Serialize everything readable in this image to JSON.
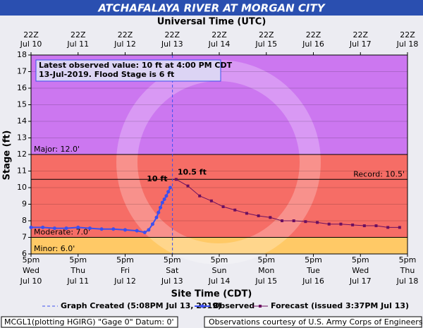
{
  "chart_data": {
    "type": "hydrograph",
    "title": "ATCHAFALAYA RIVER AT MORGAN CITY",
    "top_axis_label": "Universal Time (UTC)",
    "x_label": "Site Time (CDT)",
    "y_label": "Stage (ft)",
    "ylim": [
      6,
      18
    ],
    "yticks": [
      6,
      7,
      8,
      9,
      10,
      11,
      12,
      13,
      14,
      15,
      16,
      17,
      18
    ],
    "grid": true,
    "xlim": [
      "2019-07-10T17:00",
      "2019-07-18T17:00"
    ],
    "xticks": [
      {
        "value": "2019-07-10T17:00",
        "label": [
          "5pm",
          "Wed",
          "Jul 10"
        ]
      },
      {
        "value": "2019-07-11T17:00",
        "label": [
          "5pm",
          "Thu",
          "Jul 11"
        ]
      },
      {
        "value": "2019-07-12T17:00",
        "label": [
          "5pm",
          "Fri",
          "Jul 12"
        ]
      },
      {
        "value": "2019-07-13T17:00",
        "label": [
          "5pm",
          "Sat",
          "Jul 13"
        ]
      },
      {
        "value": "2019-07-14T17:00",
        "label": [
          "5pm",
          "Sun",
          "Jul 14"
        ]
      },
      {
        "value": "2019-07-15T17:00",
        "label": [
          "5pm",
          "Mon",
          "Jul 15"
        ]
      },
      {
        "value": "2019-07-16T17:00",
        "label": [
          "5pm",
          "Tue",
          "Jul 16"
        ]
      },
      {
        "value": "2019-07-17T17:00",
        "label": [
          "5pm",
          "Wed",
          "Jul 17"
        ]
      },
      {
        "value": "2019-07-18T17:00",
        "label": [
          "5pm",
          "Thu",
          "Jul 18"
        ]
      }
    ],
    "x2ticks": [
      {
        "value": "2019-07-10T17:00",
        "label": [
          "22Z",
          "Jul 10"
        ]
      },
      {
        "value": "2019-07-11T17:00",
        "label": [
          "22Z",
          "Jul 11"
        ]
      },
      {
        "value": "2019-07-12T17:00",
        "label": [
          "22Z",
          "Jul 12"
        ]
      },
      {
        "value": "2019-07-13T17:00",
        "label": [
          "22Z",
          "Jul 13"
        ]
      },
      {
        "value": "2019-07-14T17:00",
        "label": [
          "22Z",
          "Jul 14"
        ]
      },
      {
        "value": "2019-07-15T17:00",
        "label": [
          "22Z",
          "Jul 15"
        ]
      },
      {
        "value": "2019-07-16T17:00",
        "label": [
          "22Z",
          "Jul 16"
        ]
      },
      {
        "value": "2019-07-17T17:00",
        "label": [
          "22Z",
          "Jul 17"
        ]
      },
      {
        "value": "2019-07-18T17:00",
        "label": [
          "22Z",
          "Jul 18"
        ]
      }
    ],
    "bands": [
      {
        "from": 6,
        "to": 7,
        "color": "#ffc966"
      },
      {
        "from": 7,
        "to": 12,
        "color": "#f66d66"
      },
      {
        "from": 12,
        "to": 18,
        "color": "#cc77f0"
      }
    ],
    "thresholds": [
      {
        "value": 12,
        "label": "Major: 12.0'",
        "side": "left"
      },
      {
        "value": 10.5,
        "label": "Record: 10.5'",
        "side": "right"
      },
      {
        "value": 7,
        "label": "Moderate: 7.0'",
        "side": "left"
      },
      {
        "value": 6,
        "label": "Minor: 6.0'",
        "side": "left"
      }
    ],
    "created": {
      "x": "2019-07-13T17:08",
      "label": "Graph Created (5:08PM Jul 13, 2019)"
    },
    "info_box": [
      "Latest observed value: 10 ft at 4:00 PM CDT",
      "13-Jul-2019.  Flood Stage is 6 ft"
    ],
    "series": [
      {
        "name": "Observed",
        "color": "#3b4ff0",
        "label": "10 ft",
        "x": [
          "2019-07-10T17:00",
          "2019-07-10T23:00",
          "2019-07-11T05:00",
          "2019-07-11T11:00",
          "2019-07-11T17:00",
          "2019-07-11T23:00",
          "2019-07-12T05:00",
          "2019-07-12T11:00",
          "2019-07-12T17:00",
          "2019-07-12T23:00",
          "2019-07-13T03:00",
          "2019-07-13T05:00",
          "2019-07-13T07:00",
          "2019-07-13T09:00",
          "2019-07-13T10:00",
          "2019-07-13T11:00",
          "2019-07-13T12:00",
          "2019-07-13T13:00",
          "2019-07-13T14:00",
          "2019-07-13T15:00",
          "2019-07-13T16:00"
        ],
        "values": [
          7.6,
          7.6,
          7.55,
          7.55,
          7.6,
          7.55,
          7.5,
          7.5,
          7.45,
          7.4,
          7.3,
          7.45,
          7.8,
          8.2,
          8.5,
          8.8,
          9.1,
          9.3,
          9.5,
          9.75,
          10.0
        ]
      },
      {
        "name": "Forecast (issued 3:37PM Jul 13)",
        "color": "#6b1060",
        "label": "10.5 ft",
        "x": [
          "2019-07-13T19:00",
          "2019-07-14T01:00",
          "2019-07-14T07:00",
          "2019-07-14T13:00",
          "2019-07-14T19:00",
          "2019-07-15T01:00",
          "2019-07-15T07:00",
          "2019-07-15T13:00",
          "2019-07-15T19:00",
          "2019-07-16T01:00",
          "2019-07-16T07:00",
          "2019-07-16T13:00",
          "2019-07-16T19:00",
          "2019-07-17T01:00",
          "2019-07-17T07:00",
          "2019-07-17T13:00",
          "2019-07-17T19:00",
          "2019-07-18T01:00",
          "2019-07-18T07:00",
          "2019-07-18T13:00"
        ],
        "values": [
          10.5,
          10.1,
          9.5,
          9.2,
          8.85,
          8.65,
          8.45,
          8.3,
          8.2,
          8.0,
          8.0,
          7.95,
          7.9,
          7.8,
          7.8,
          7.75,
          7.7,
          7.7,
          7.6,
          7.6
        ]
      }
    ],
    "footer_left": "MCGL1(plotting HGIRG) \"Gage 0\" Datum: 0'",
    "footer_right": "Observations courtesy of U.S. Army Corps of Engineers"
  }
}
